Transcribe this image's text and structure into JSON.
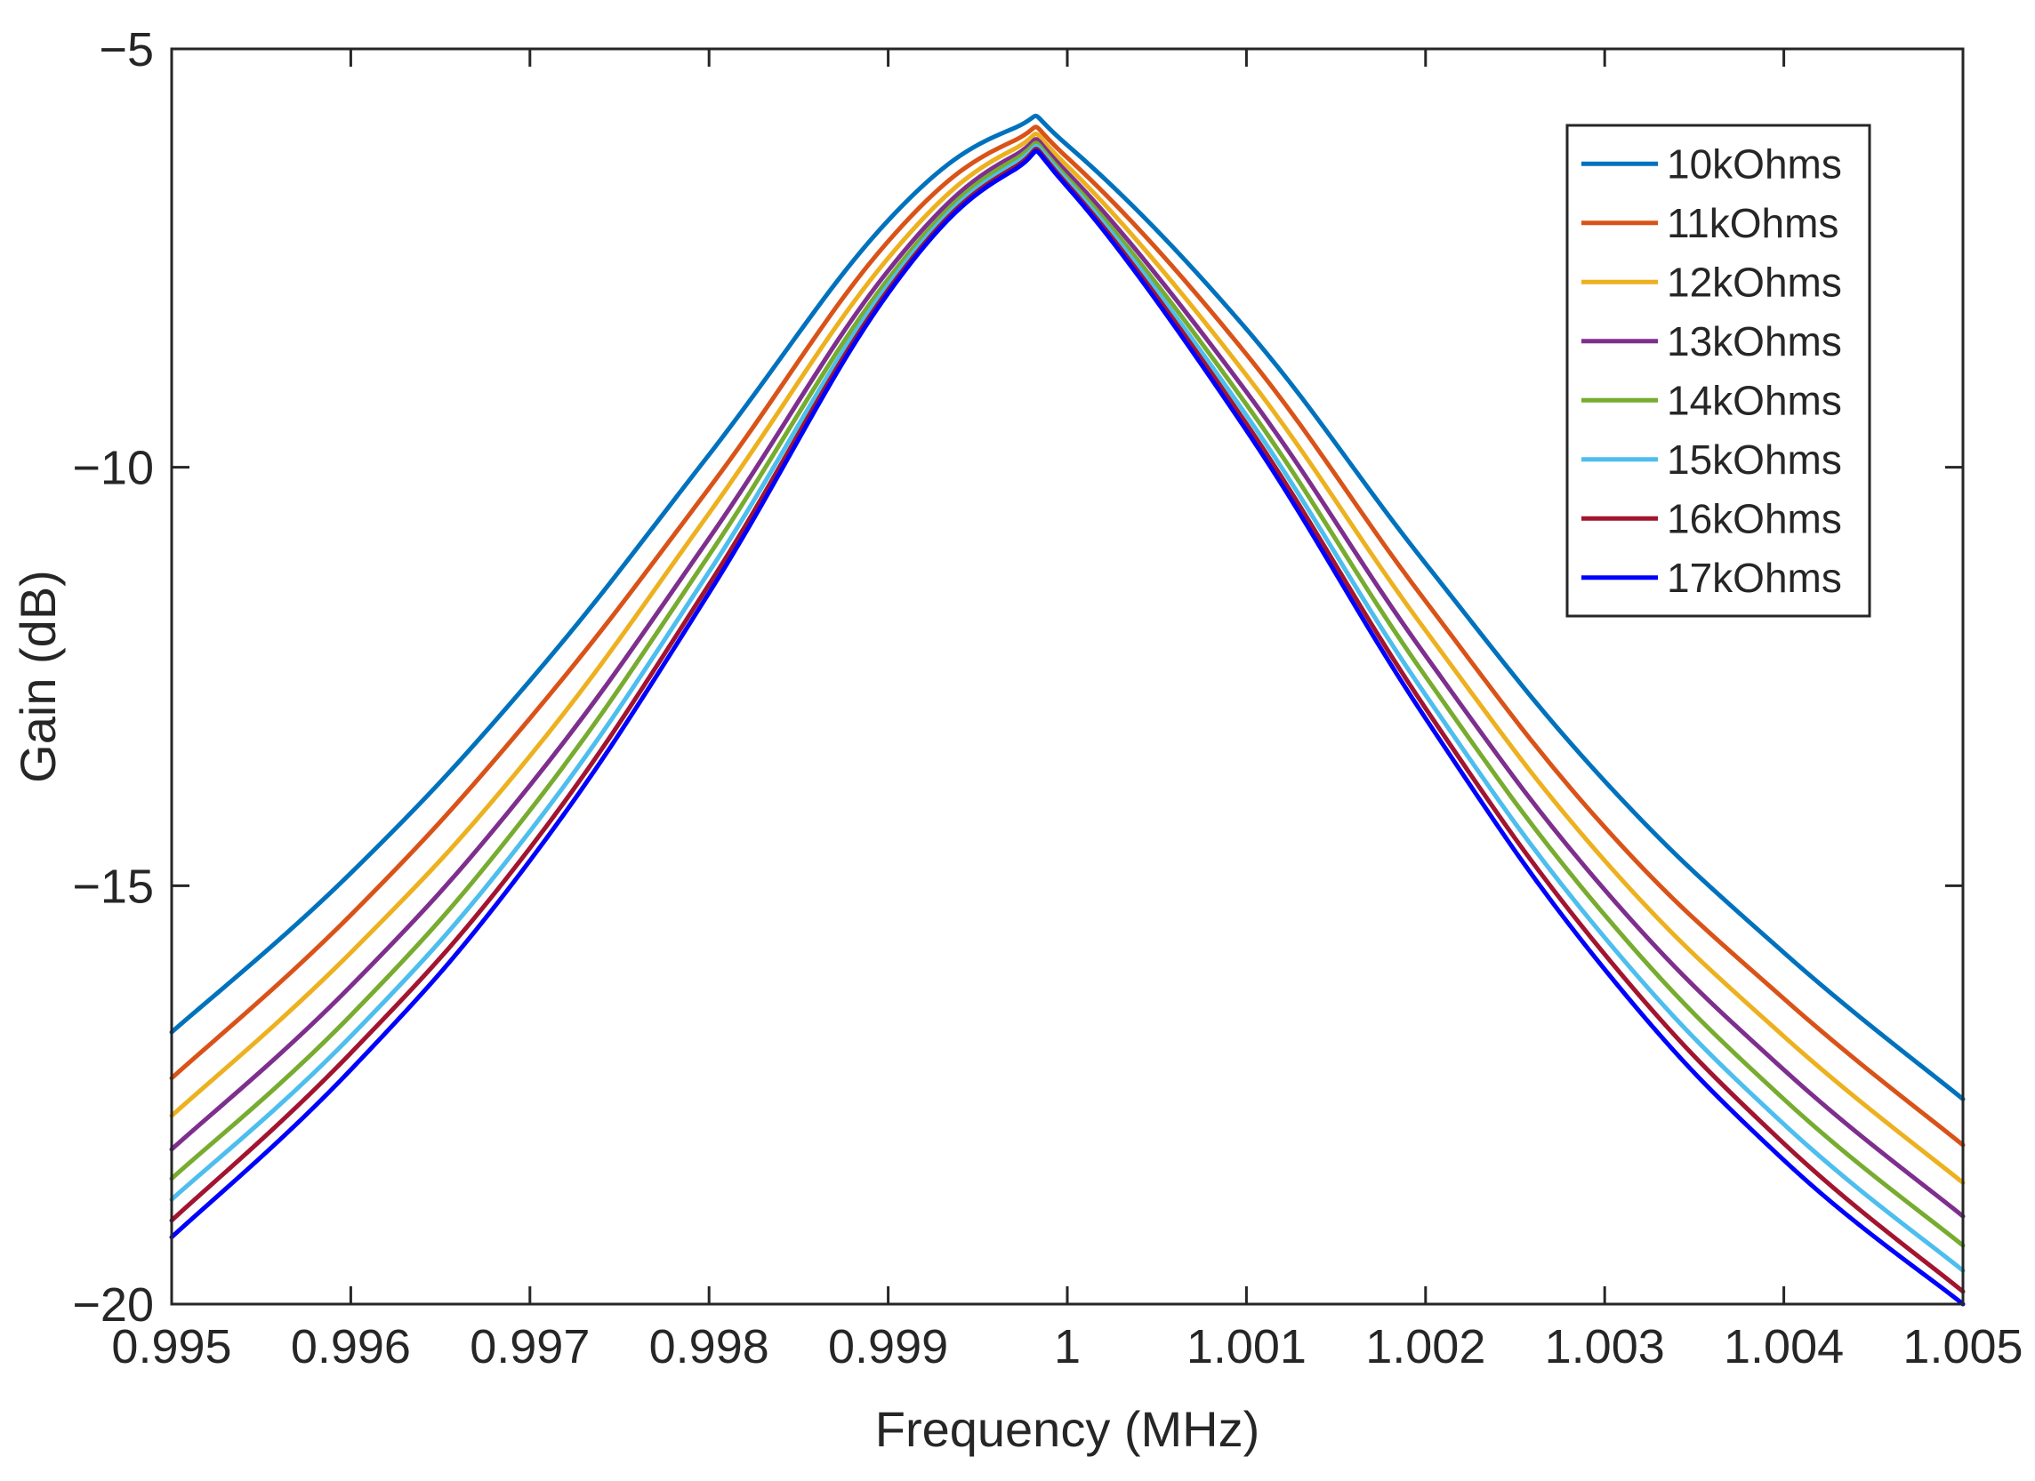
{
  "chart_data": {
    "type": "line",
    "title": "",
    "xlabel": "Frequency (MHz)",
    "ylabel": "Gain (dB)",
    "xlim": [
      0.995,
      1.005
    ],
    "ylim": [
      -20,
      -5
    ],
    "xticks": [
      0.995,
      0.996,
      0.997,
      0.998,
      0.999,
      1,
      1.001,
      1.002,
      1.003,
      1.004,
      1.005
    ],
    "xtick_labels": [
      "0.995",
      "0.996",
      "0.997",
      "0.998",
      "0.999",
      "1",
      "1.001",
      "1.002",
      "1.003",
      "1.004",
      "1.005"
    ],
    "yticks": [
      -20,
      -15,
      -10,
      -5
    ],
    "ytick_labels": [
      "−20",
      "−15",
      "−10",
      "−5"
    ],
    "grid": false,
    "legend_position": "top-right",
    "x": [
      0.995,
      0.996,
      0.997,
      0.998,
      0.999,
      0.9997,
      1.0,
      1.001,
      1.002,
      1.003,
      1.004,
      1.005
    ],
    "series": [
      {
        "name": "10kOhms",
        "color": "#0072BD",
        "values": [
          -16.75,
          -14.85,
          -12.55,
          -9.85,
          -7.05,
          -5.95,
          -6.15,
          -8.35,
          -11.15,
          -13.75,
          -15.8,
          -17.55
        ]
      },
      {
        "name": "11kOhms",
        "color": "#D95319",
        "values": [
          -17.3,
          -15.35,
          -13.0,
          -10.25,
          -7.3,
          -6.1,
          -6.3,
          -8.65,
          -11.6,
          -14.3,
          -16.35,
          -18.1
        ]
      },
      {
        "name": "12kOhms",
        "color": "#EDB120",
        "values": [
          -17.75,
          -15.8,
          -13.45,
          -10.55,
          -7.5,
          -6.2,
          -6.4,
          -8.9,
          -11.95,
          -14.7,
          -16.8,
          -18.55
        ]
      },
      {
        "name": "13kOhms",
        "color": "#7E2F8E",
        "values": [
          -18.15,
          -16.2,
          -13.8,
          -10.85,
          -7.65,
          -6.28,
          -6.48,
          -9.1,
          -12.25,
          -15.05,
          -17.2,
          -18.95
        ]
      },
      {
        "name": "14kOhms",
        "color": "#77AC30",
        "values": [
          -18.5,
          -16.55,
          -14.1,
          -11.05,
          -7.75,
          -6.33,
          -6.54,
          -9.25,
          -12.5,
          -15.35,
          -17.55,
          -19.3
        ]
      },
      {
        "name": "15kOhms",
        "color": "#4DBEEE",
        "values": [
          -18.75,
          -16.8,
          -14.35,
          -11.25,
          -7.82,
          -6.38,
          -6.58,
          -9.38,
          -12.72,
          -15.62,
          -17.85,
          -19.6
        ]
      },
      {
        "name": "16kOhms",
        "color": "#A2142F",
        "values": [
          -19.0,
          -17.0,
          -14.55,
          -11.4,
          -7.88,
          -6.42,
          -6.62,
          -9.48,
          -12.88,
          -15.82,
          -18.08,
          -19.85
        ]
      },
      {
        "name": "17kOhms",
        "color": "#0000FF",
        "values": [
          -19.2,
          -17.2,
          -14.7,
          -11.5,
          -7.92,
          -6.45,
          -6.65,
          -9.56,
          -13.0,
          -16.0,
          -18.28,
          -20.0
        ]
      }
    ]
  }
}
